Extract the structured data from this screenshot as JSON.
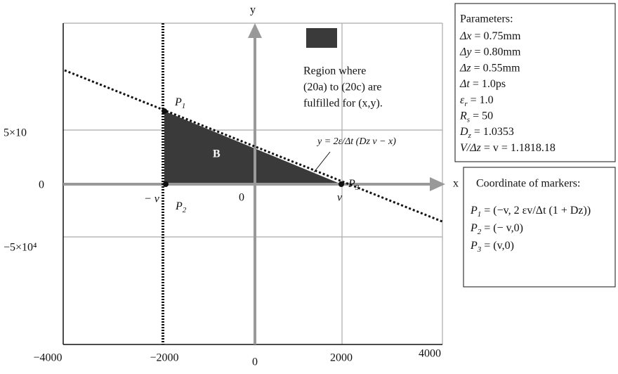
{
  "axes": {
    "x_label": "x",
    "y_label": "y"
  },
  "x_tick_labels": [
    "−4000",
    "−2000",
    "0",
    "2000",
    "4000"
  ],
  "y_tick_labels": [
    "5×10",
    "0",
    "−5×10⁴"
  ],
  "axis_marks": [
    "− v",
    "0",
    "v"
  ],
  "markers": [
    {
      "name": "P",
      "sub": "1"
    },
    {
      "name": "P",
      "sub": "2"
    },
    {
      "name": "P",
      "sub": "3"
    }
  ],
  "region_label": "B",
  "legend": [
    "Region where",
    "(20a) to (20c) are",
    "fulfilled for (x,y)."
  ],
  "equation": "y = 2ε/Δt (Dz v − x)",
  "parameters": {
    "title": "Parameters:",
    "items": [
      {
        "name": "Δx",
        "value": " = 0.75mm"
      },
      {
        "name": "Δy",
        "value": " = 0.80mm"
      },
      {
        "name": "Δz",
        "value": " = 0.55mm"
      },
      {
        "name": "Δt",
        "value": " = 1.0ps"
      },
      {
        "name": "ε",
        "sub": "r",
        "value": " = 1.0"
      },
      {
        "name": "R",
        "sub": "s",
        "value": " = 50"
      },
      {
        "name": "D",
        "sub": "z",
        "value": " = 1.0353"
      },
      {
        "name": "V/Δz",
        "value": " = v = 1.1818.18"
      }
    ]
  },
  "coordinates": {
    "title": "Coordinate of markers:",
    "items": [
      {
        "name": "P",
        "sub": "1",
        "value": " = (−v, 2 εv/Δt (1 + Dz))"
      },
      {
        "name": "P",
        "sub": "2",
        "value": " = (− v,0)"
      },
      {
        "name": "P",
        "sub": "3",
        "value": " = (v,0)"
      }
    ]
  }
}
